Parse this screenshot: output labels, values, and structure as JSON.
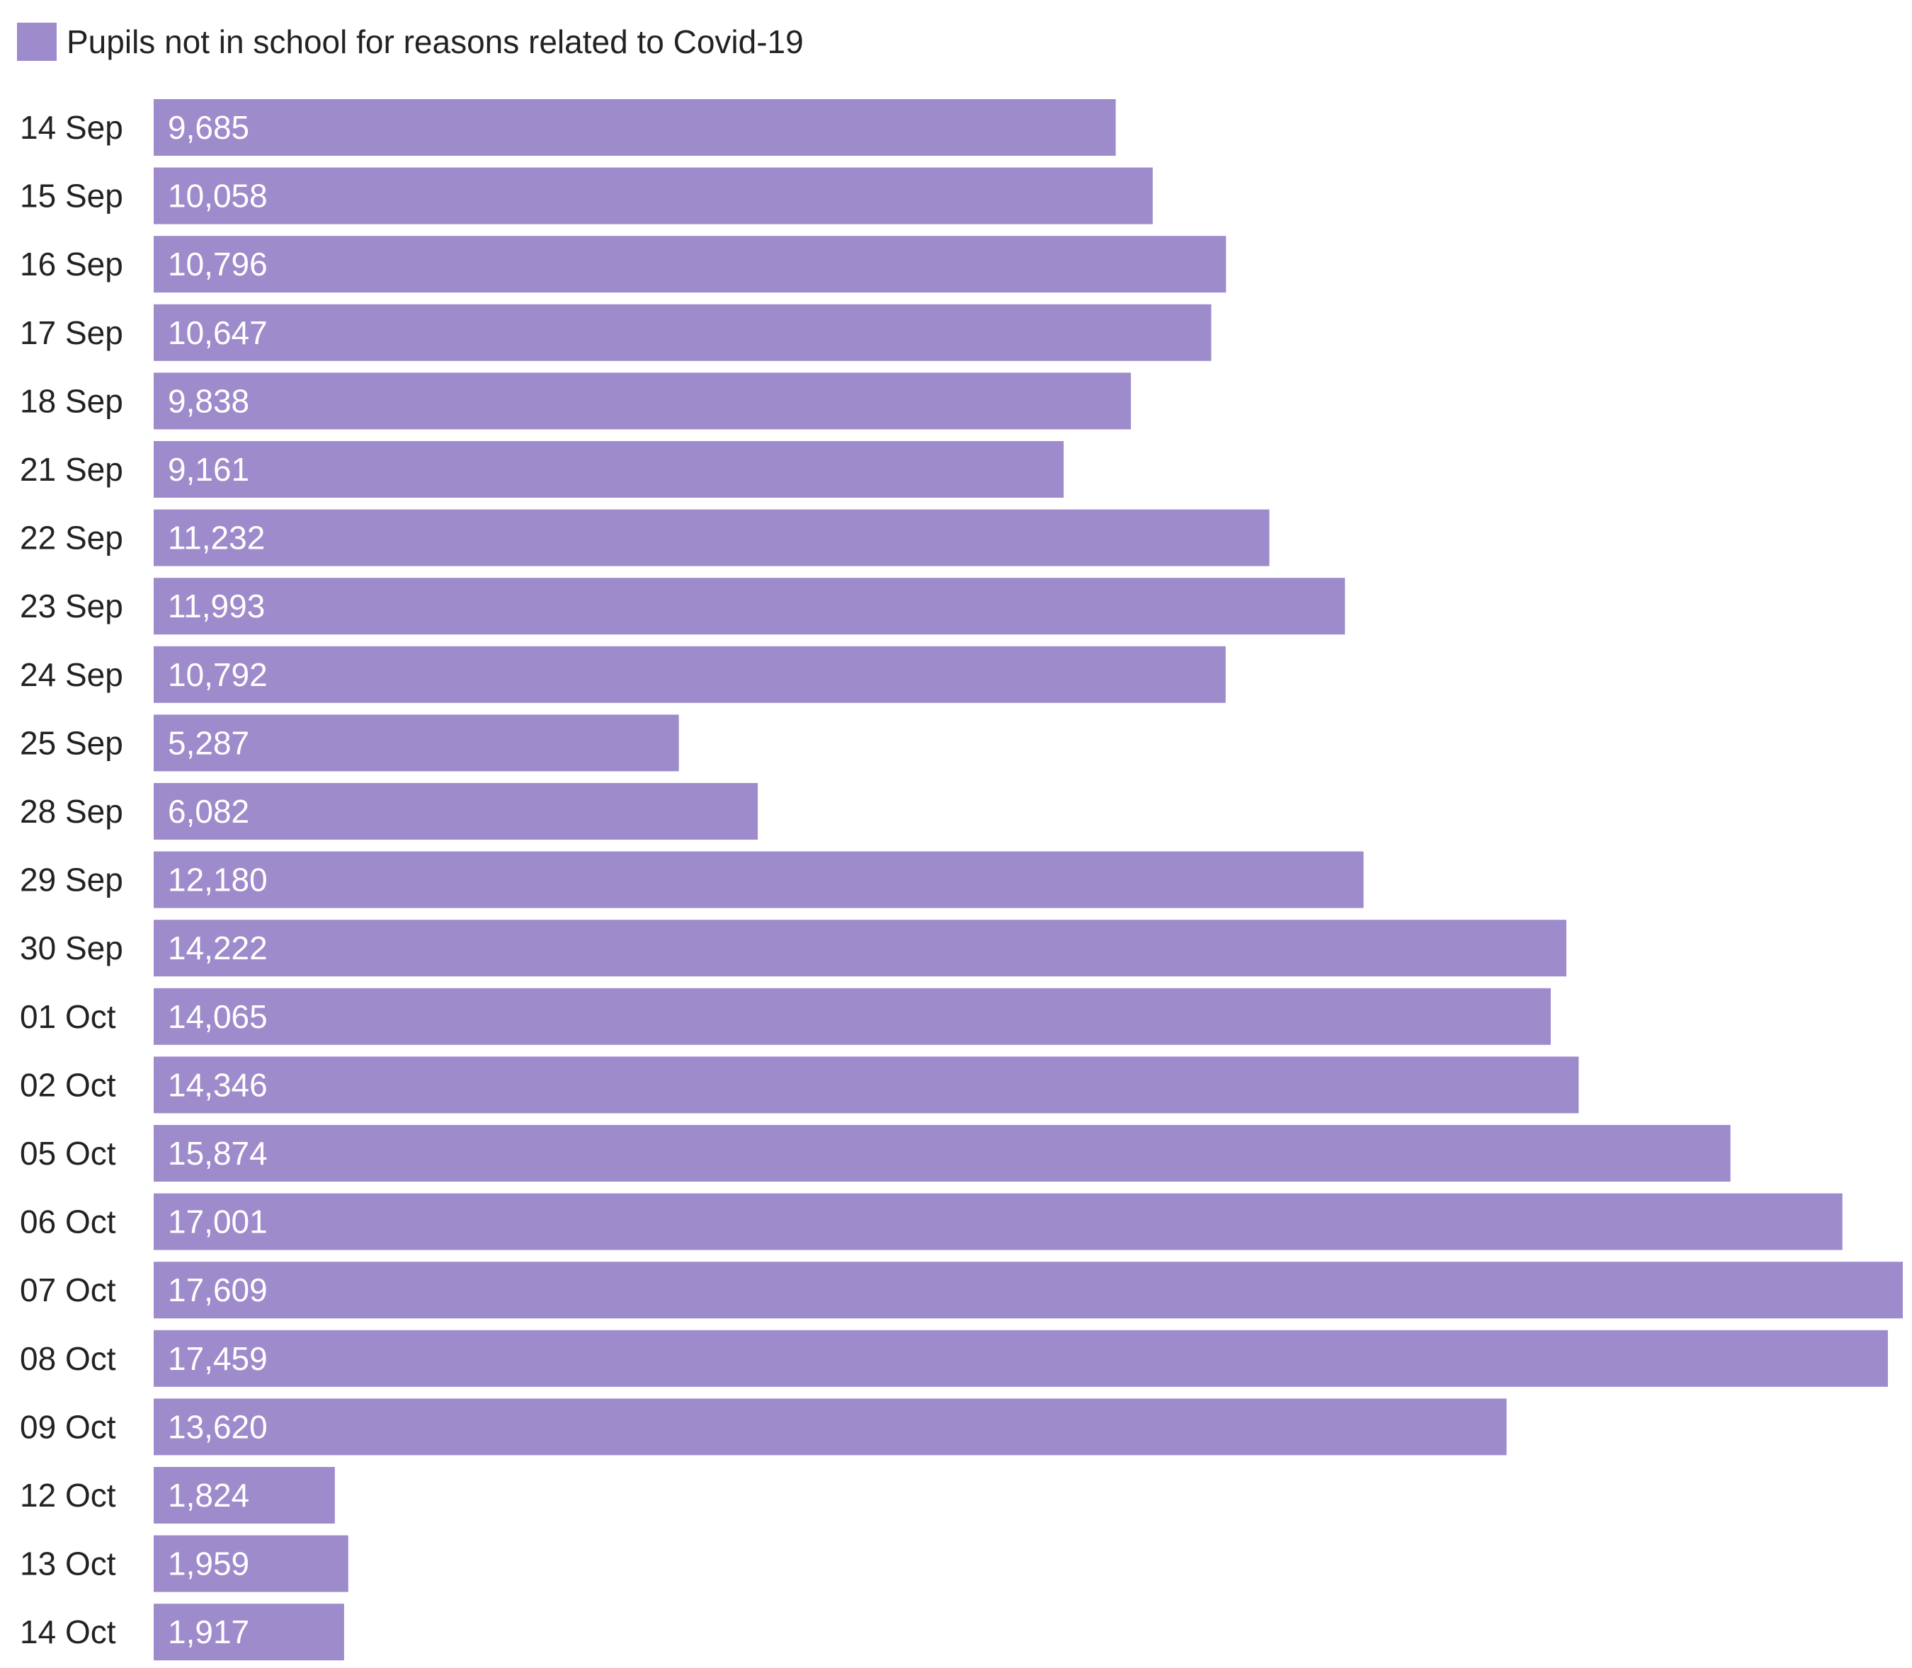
{
  "chart_data": {
    "type": "bar",
    "orientation": "horizontal",
    "legend": "top-left",
    "grid": false,
    "title": "",
    "xlabel": "",
    "ylabel": "",
    "xlim": [
      0,
      17609
    ],
    "bar_color": "#9e8bcb",
    "categories": [
      "14 Sep",
      "15 Sep",
      "16 Sep",
      "17 Sep",
      "18 Sep",
      "21 Sep",
      "22 Sep",
      "23 Sep",
      "24 Sep",
      "25 Sep",
      "28 Sep",
      "29 Sep",
      "30 Sep",
      "01 Oct",
      "02 Oct",
      "05 Oct",
      "06 Oct",
      "07 Oct",
      "08 Oct",
      "09 Oct",
      "12 Oct",
      "13 Oct",
      "14 Oct"
    ],
    "series": [
      {
        "name": "Pupils not in school for reasons related to Covid-19",
        "values": [
          9685,
          10058,
          10796,
          10647,
          9838,
          9161,
          11232,
          11993,
          10792,
          5287,
          6082,
          12180,
          14222,
          14065,
          14346,
          15874,
          17001,
          17609,
          17459,
          13620,
          1824,
          1959,
          1917
        ],
        "labels": [
          "9,685",
          "10,058",
          "10,796",
          "10,647",
          "9,838",
          "9,161",
          "11,232",
          "11,993",
          "10,792",
          "5,287",
          "6,082",
          "12,180",
          "14,222",
          "14,065",
          "14,346",
          "15,874",
          "17,001",
          "17,609",
          "17,459",
          "13,620",
          "1,824",
          "1,959",
          "1,917"
        ]
      }
    ]
  }
}
